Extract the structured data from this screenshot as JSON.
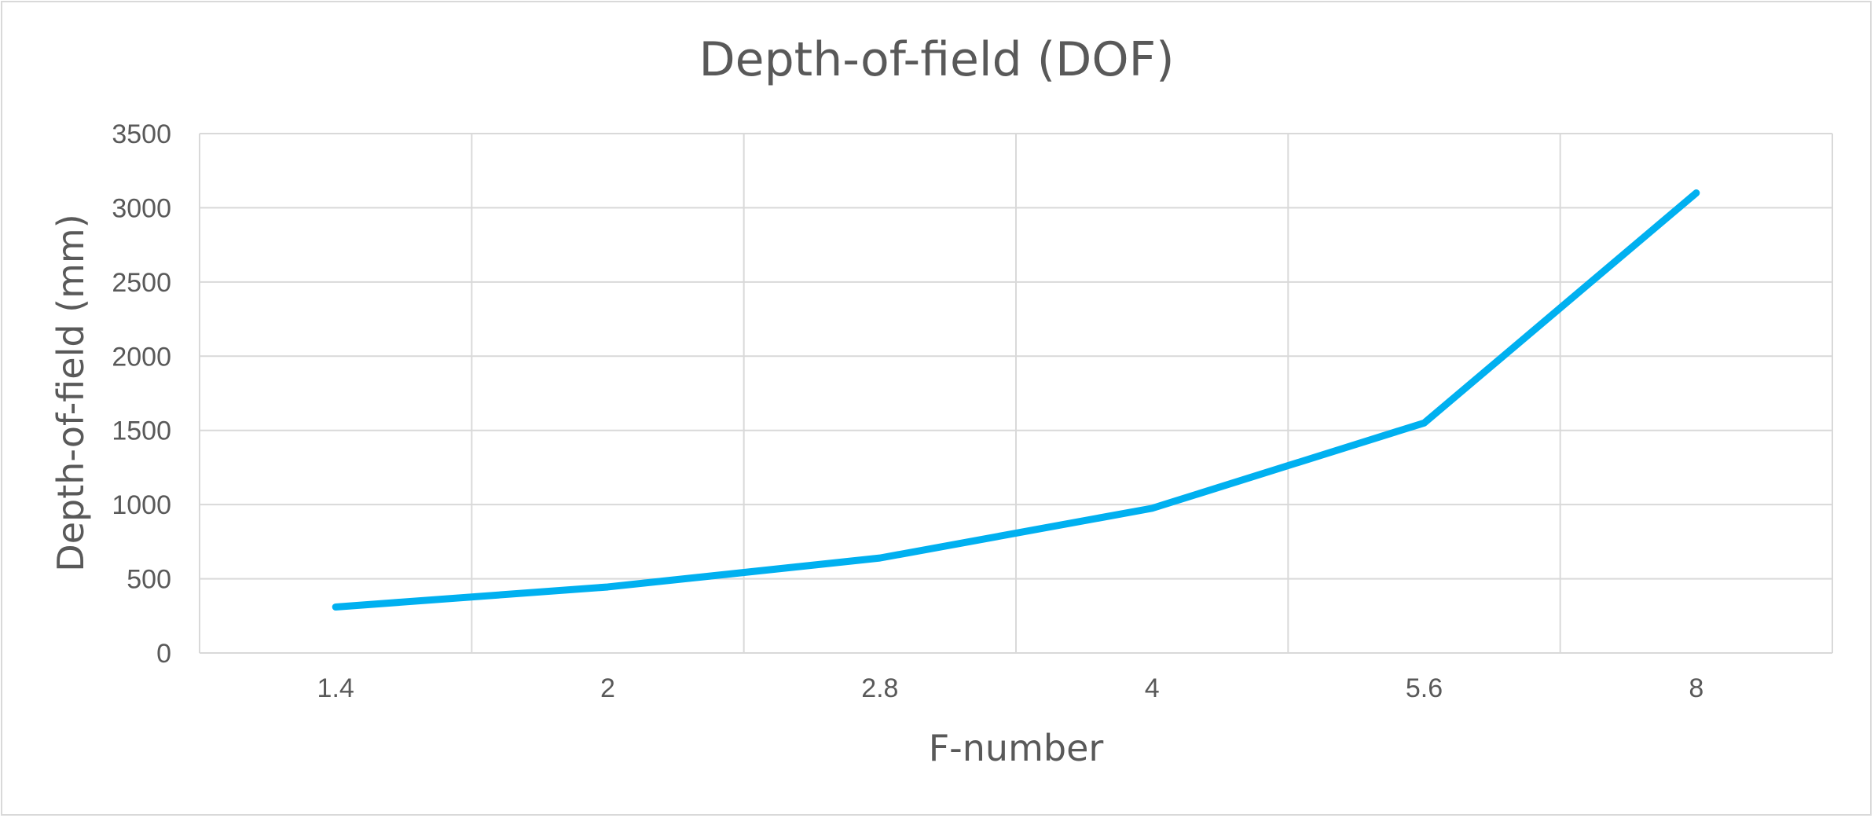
{
  "chart_data": {
    "type": "line",
    "title": "Depth-of-field (DOF)",
    "xlabel": "F-number",
    "ylabel": "Depth-of-field (mm)",
    "categories": [
      "1.4",
      "2",
      "2.8",
      "4",
      "5.6",
      "8"
    ],
    "series": [
      {
        "values": [
          310,
          445,
          640,
          975,
          1550,
          3100
        ],
        "color": "#00b0f0"
      }
    ],
    "ylim": [
      0,
      3500
    ],
    "yticks": [
      "0",
      "500",
      "1000",
      "1500",
      "2000",
      "2500",
      "3000",
      "3500"
    ],
    "grid": true,
    "legend": "none"
  }
}
